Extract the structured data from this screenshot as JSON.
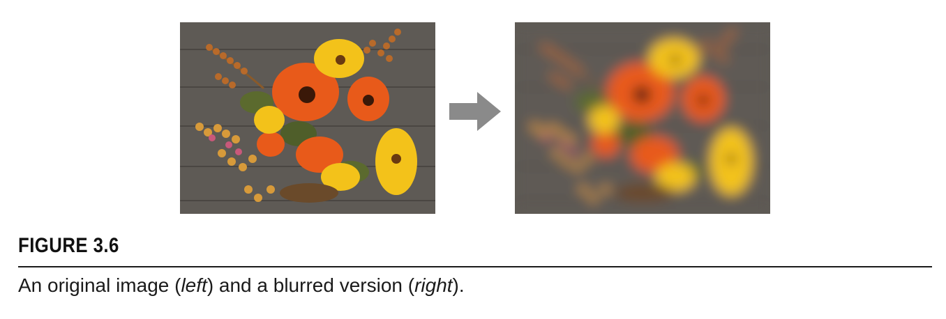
{
  "figure": {
    "label": "FIGURE 3.6",
    "caption": {
      "part1": "An original image (",
      "left_word": "left",
      "part2": ") and a blurred version (",
      "right_word": "right",
      "part3": ")."
    }
  },
  "images": {
    "left": {
      "name": "original-flower-bouquet-photo",
      "blurred": false
    },
    "right": {
      "name": "blurred-flower-bouquet-photo",
      "blurred": true
    }
  },
  "arrow": {
    "icon": "right-arrow-icon",
    "color": "#8a8a8a"
  },
  "colors": {
    "wood": "#5e5a55",
    "wood_dark": "#4a4642",
    "orange": "#e85a1a",
    "yellow": "#f3c21a",
    "berry": "#c98a3a"
  }
}
